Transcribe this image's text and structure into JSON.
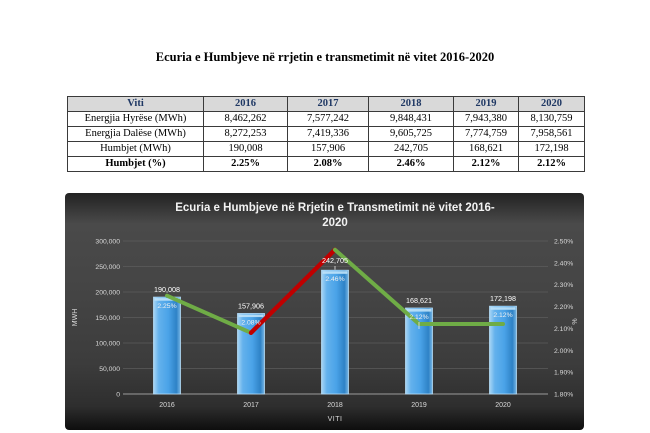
{
  "document": {
    "title": "Ecuria e Humbjeve në rrjetin e transmetimit në vitet 2016-2020"
  },
  "table": {
    "columns": [
      "Viti",
      "2016",
      "2017",
      "2018",
      "2019",
      "2020"
    ],
    "rows": [
      {
        "cells": [
          "Energjia Hyrëse (MWh)",
          "8,462,262",
          "7,577,242",
          "9,848,431",
          "7,943,380",
          "8,130,759"
        ],
        "bold": false
      },
      {
        "cells": [
          "Energjia Dalëse (MWh)",
          "8,272,253",
          "7,419,336",
          "9,605,725",
          "7,774,759",
          "7,958,561"
        ],
        "bold": false
      },
      {
        "cells": [
          "Humbjet (MWh)",
          "190,008",
          "157,906",
          "242,705",
          "168,621",
          "172,198"
        ],
        "bold": false
      },
      {
        "cells": [
          "Humbjet (%)",
          "2.25%",
          "2.08%",
          "2.46%",
          "2.12%",
          "2.12%"
        ],
        "bold": true
      }
    ],
    "header_bg": "#d9d9d9",
    "header_text_color": "#1f3864"
  },
  "chart_data": {
    "type": "bar",
    "combo": "bar+line",
    "title": "Ecuria e Humbjeve në Rrjetin e Transmetimit në vitet 2016-2020",
    "title_lines": [
      "Ecuria e Humbjeve në Rrjetin e Transmetimit në vitet 2016-",
      "2020"
    ],
    "categories": [
      "2016",
      "2017",
      "2018",
      "2019",
      "2020"
    ],
    "series": [
      {
        "name": "Humbjet (MWh)",
        "type": "bar",
        "axis": "left",
        "values": [
          190008,
          157906,
          242705,
          168621,
          172198
        ],
        "labels": [
          "190,008",
          "157,906",
          "242,705",
          "168,621",
          "172,198"
        ]
      },
      {
        "name": "Humbjet (%)",
        "type": "line",
        "axis": "right",
        "values": [
          2.25,
          2.08,
          2.46,
          2.12,
          2.12
        ],
        "labels": [
          "2.25%",
          "2.08%",
          "2.46%",
          "2.12%",
          "2.12%"
        ],
        "segment_colors": [
          "#6fac46",
          "#c00000",
          "#6fac46",
          "#6fac46"
        ]
      }
    ],
    "xlabel": "VITI",
    "ylabel_left": "MWH",
    "ylabel_right": "%",
    "ylim_left": [
      0,
      300000
    ],
    "ytick_left_labels": [
      "0",
      "50,000",
      "100,000",
      "150,000",
      "200,000",
      "250,000",
      "300,000"
    ],
    "ylim_right": [
      1.8,
      2.5
    ],
    "ytick_right_labels": [
      "1.80%",
      "1.90%",
      "2.00%",
      "2.10%",
      "2.20%",
      "2.30%",
      "2.40%",
      "2.50%"
    ],
    "grid": true,
    "legend_position": "none",
    "colors": {
      "bar_main": "#4aa3e8",
      "bar_light": "#a9d6f5",
      "bar_dark": "#2e82c6",
      "bar_cap": "#bfe2f8",
      "line_increase": "#c00000",
      "line_decrease": "#6fac46",
      "axis_text": "#d9d9d9",
      "gridline": "#5c5c5c",
      "chart_bg": "#3f3f3f",
      "title_text": "#f2f2f2"
    }
  }
}
